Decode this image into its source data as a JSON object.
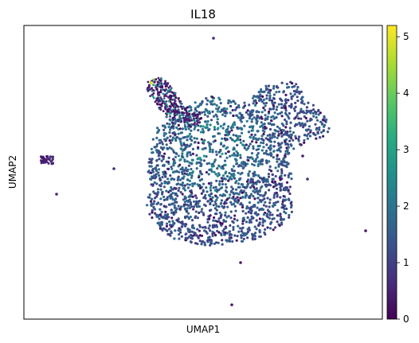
{
  "chart_data": {
    "type": "scatter",
    "title": "IL18",
    "xlabel": "UMAP1",
    "ylabel": "UMAP2",
    "x_ticks": "none",
    "y_ticks": "none",
    "grid": false,
    "colorbar": {
      "colormap": "viridis",
      "range": [
        0,
        5.2
      ],
      "ticks": [
        0,
        1,
        2,
        3,
        4,
        5
      ],
      "tick_labels": [
        "0",
        "1",
        "2",
        "3",
        "4",
        "5"
      ],
      "placement": "right"
    },
    "point_color_low": "#440154",
    "point_color_mid": "#3b528b",
    "point_color_high": "#fde725"
  }
}
